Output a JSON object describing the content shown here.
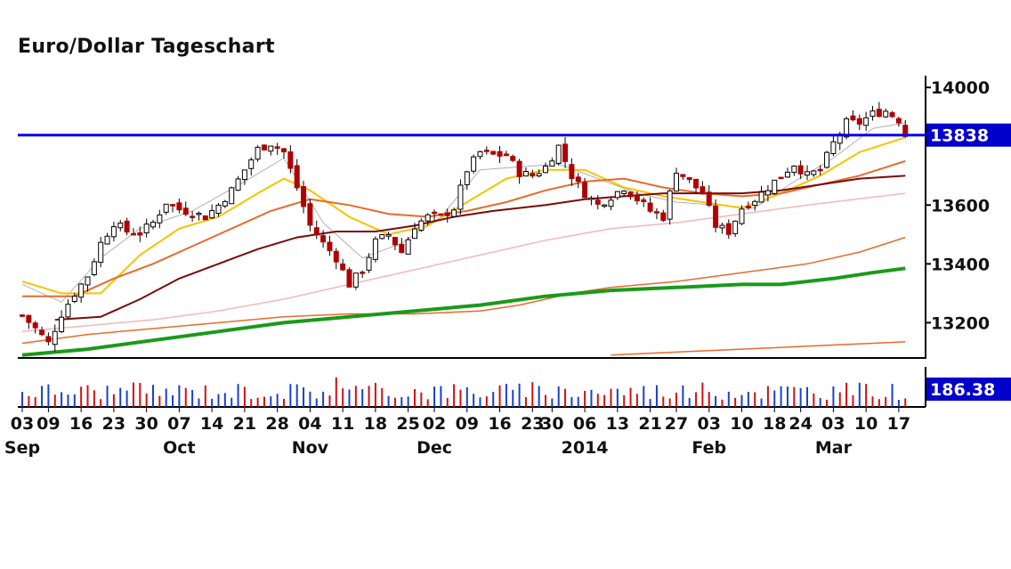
{
  "title": "Euro/Dollar Tageschart",
  "chart_data": {
    "type": "candlestick",
    "title": "Euro/Dollar Tageschart",
    "y_ticks": [
      13200,
      13400,
      13600,
      14000
    ],
    "ylim": [
      13080,
      14040
    ],
    "x_ticks": [
      "03",
      "09",
      "16",
      "23",
      "30",
      "07",
      "14",
      "21",
      "28",
      "04",
      "11",
      "18",
      "25",
      "02",
      "09",
      "16",
      "23",
      "30",
      "06",
      "13",
      "21",
      "27",
      "03",
      "10",
      "18",
      "24",
      "03",
      "10",
      "17"
    ],
    "x_tick_index": [
      0,
      4,
      9,
      14,
      19,
      24,
      29,
      34,
      39,
      44,
      49,
      54,
      59,
      63,
      68,
      73,
      78,
      81,
      86,
      91,
      96,
      100,
      105,
      110,
      115,
      119,
      124,
      129,
      134
    ],
    "months": [
      {
        "label": "Sep",
        "index": 0
      },
      {
        "label": "Oct",
        "index": 24
      },
      {
        "label": "Nov",
        "index": 44
      },
      {
        "label": "Dec",
        "index": 63
      },
      {
        "label": "2014",
        "index": 86
      },
      {
        "label": "Feb",
        "index": 105
      },
      {
        "label": "Mar",
        "index": 124
      }
    ],
    "horizontal_line": {
      "value": 13838,
      "label": "13838",
      "color": "#0000ee"
    },
    "last_volume_label": "186.38",
    "colors": {
      "up": "#000000",
      "down": "#b00000",
      "ma_fast": "#f5c400",
      "ma_thin": "#b0b0b0",
      "ma_orange": "#e86a2a",
      "ma_darkred": "#7a0a0a",
      "ma_pink": "#f2b8b8",
      "ma_green": "#1a9a1a",
      "vol_up": "#1a3fd0",
      "vol_down": "#d01010",
      "label_box": "#0000cc"
    },
    "ohlc_keypoints": [
      [
        0,
        13225
      ],
      [
        2,
        13180
      ],
      [
        4,
        13130
      ],
      [
        6,
        13230
      ],
      [
        8,
        13300
      ],
      [
        10,
        13360
      ],
      [
        12,
        13470
      ],
      [
        14,
        13540
      ],
      [
        16,
        13510
      ],
      [
        18,
        13505
      ],
      [
        20,
        13540
      ],
      [
        22,
        13610
      ],
      [
        24,
        13585
      ],
      [
        26,
        13575
      ],
      [
        28,
        13560
      ],
      [
        30,
        13600
      ],
      [
        32,
        13650
      ],
      [
        34,
        13720
      ],
      [
        36,
        13790
      ],
      [
        38,
        13810
      ],
      [
        40,
        13780
      ],
      [
        42,
        13660
      ],
      [
        44,
        13530
      ],
      [
        46,
        13470
      ],
      [
        48,
        13420
      ],
      [
        50,
        13330
      ],
      [
        52,
        13380
      ],
      [
        54,
        13475
      ],
      [
        56,
        13500
      ],
      [
        58,
        13440
      ],
      [
        60,
        13530
      ],
      [
        62,
        13560
      ],
      [
        64,
        13560
      ],
      [
        66,
        13590
      ],
      [
        68,
        13720
      ],
      [
        70,
        13780
      ],
      [
        72,
        13770
      ],
      [
        74,
        13770
      ],
      [
        76,
        13710
      ],
      [
        78,
        13700
      ],
      [
        80,
        13730
      ],
      [
        82,
        13800
      ],
      [
        84,
        13700
      ],
      [
        86,
        13640
      ],
      [
        88,
        13600
      ],
      [
        90,
        13630
      ],
      [
        92,
        13660
      ],
      [
        94,
        13620
      ],
      [
        96,
        13580
      ],
      [
        98,
        13560
      ],
      [
        100,
        13720
      ],
      [
        102,
        13680
      ],
      [
        104,
        13640
      ],
      [
        106,
        13530
      ],
      [
        108,
        13510
      ],
      [
        110,
        13590
      ],
      [
        112,
        13620
      ],
      [
        114,
        13660
      ],
      [
        116,
        13700
      ],
      [
        118,
        13740
      ],
      [
        120,
        13700
      ],
      [
        122,
        13720
      ],
      [
        124,
        13810
      ],
      [
        126,
        13880
      ],
      [
        128,
        13880
      ],
      [
        130,
        13910
      ],
      [
        132,
        13920
      ],
      [
        134,
        13890
      ],
      [
        135,
        13838
      ]
    ],
    "moving_averages": [
      {
        "key": "ma_thin",
        "width": 1,
        "points": [
          [
            0,
            13330
          ],
          [
            6,
            13270
          ],
          [
            12,
            13420
          ],
          [
            18,
            13520
          ],
          [
            26,
            13580
          ],
          [
            34,
            13680
          ],
          [
            40,
            13760
          ],
          [
            46,
            13540
          ],
          [
            52,
            13420
          ],
          [
            58,
            13470
          ],
          [
            64,
            13560
          ],
          [
            70,
            13720
          ],
          [
            76,
            13730
          ],
          [
            82,
            13740
          ],
          [
            88,
            13690
          ],
          [
            94,
            13640
          ],
          [
            100,
            13610
          ],
          [
            106,
            13600
          ],
          [
            112,
            13590
          ],
          [
            118,
            13680
          ],
          [
            124,
            13760
          ],
          [
            130,
            13860
          ],
          [
            135,
            13880
          ]
        ]
      },
      {
        "key": "ma_fast",
        "width": 2,
        "points": [
          [
            0,
            13340
          ],
          [
            6,
            13300
          ],
          [
            12,
            13300
          ],
          [
            18,
            13430
          ],
          [
            24,
            13520
          ],
          [
            30,
            13560
          ],
          [
            36,
            13640
          ],
          [
            40,
            13690
          ],
          [
            44,
            13650
          ],
          [
            50,
            13560
          ],
          [
            56,
            13500
          ],
          [
            62,
            13530
          ],
          [
            68,
            13610
          ],
          [
            74,
            13690
          ],
          [
            80,
            13720
          ],
          [
            86,
            13720
          ],
          [
            92,
            13660
          ],
          [
            98,
            13630
          ],
          [
            104,
            13610
          ],
          [
            110,
            13590
          ],
          [
            116,
            13640
          ],
          [
            122,
            13700
          ],
          [
            128,
            13780
          ],
          [
            135,
            13830
          ]
        ]
      },
      {
        "key": "ma_orange",
        "width": 2,
        "points": [
          [
            0,
            13290
          ],
          [
            8,
            13290
          ],
          [
            14,
            13350
          ],
          [
            20,
            13400
          ],
          [
            26,
            13460
          ],
          [
            32,
            13520
          ],
          [
            38,
            13580
          ],
          [
            44,
            13620
          ],
          [
            50,
            13600
          ],
          [
            56,
            13570
          ],
          [
            62,
            13560
          ],
          [
            68,
            13580
          ],
          [
            74,
            13610
          ],
          [
            80,
            13650
          ],
          [
            86,
            13680
          ],
          [
            92,
            13690
          ],
          [
            98,
            13660
          ],
          [
            104,
            13640
          ],
          [
            110,
            13630
          ],
          [
            116,
            13640
          ],
          [
            122,
            13670
          ],
          [
            128,
            13700
          ],
          [
            135,
            13750
          ]
        ]
      },
      {
        "key": "ma_darkred",
        "width": 2,
        "points": [
          [
            5,
            13210
          ],
          [
            12,
            13220
          ],
          [
            18,
            13280
          ],
          [
            24,
            13350
          ],
          [
            30,
            13400
          ],
          [
            36,
            13450
          ],
          [
            42,
            13490
          ],
          [
            48,
            13510
          ],
          [
            54,
            13510
          ],
          [
            60,
            13530
          ],
          [
            66,
            13560
          ],
          [
            72,
            13580
          ],
          [
            80,
            13600
          ],
          [
            86,
            13620
          ],
          [
            92,
            13630
          ],
          [
            98,
            13640
          ],
          [
            104,
            13640
          ],
          [
            110,
            13640
          ],
          [
            116,
            13650
          ],
          [
            122,
            13670
          ],
          [
            128,
            13690
          ],
          [
            135,
            13700
          ]
        ]
      },
      {
        "key": "ma_pink",
        "width": 1.5,
        "points": [
          [
            0,
            13170
          ],
          [
            10,
            13190
          ],
          [
            20,
            13210
          ],
          [
            30,
            13240
          ],
          [
            40,
            13280
          ],
          [
            50,
            13330
          ],
          [
            60,
            13380
          ],
          [
            70,
            13430
          ],
          [
            80,
            13480
          ],
          [
            90,
            13520
          ],
          [
            100,
            13540
          ],
          [
            110,
            13570
          ],
          [
            120,
            13600
          ],
          [
            135,
            13640
          ]
        ]
      },
      {
        "key": "ma_orange",
        "width": 1.5,
        "points": [
          [
            0,
            13130
          ],
          [
            10,
            13160
          ],
          [
            20,
            13180
          ],
          [
            30,
            13200
          ],
          [
            40,
            13220
          ],
          [
            50,
            13230
          ],
          [
            60,
            13230
          ],
          [
            70,
            13240
          ],
          [
            76,
            13260
          ],
          [
            84,
            13300
          ],
          [
            90,
            13320
          ],
          [
            100,
            13340
          ],
          [
            110,
            13370
          ],
          [
            120,
            13400
          ],
          [
            128,
            13440
          ],
          [
            135,
            13490
          ]
        ]
      },
      {
        "key": "ma_green",
        "width": 4,
        "points": [
          [
            0,
            13090
          ],
          [
            10,
            13110
          ],
          [
            20,
            13140
          ],
          [
            30,
            13170
          ],
          [
            40,
            13200
          ],
          [
            50,
            13220
          ],
          [
            60,
            13240
          ],
          [
            70,
            13260
          ],
          [
            80,
            13290
          ],
          [
            90,
            13310
          ],
          [
            100,
            13320
          ],
          [
            110,
            13330
          ],
          [
            116,
            13330
          ],
          [
            124,
            13350
          ],
          [
            130,
            13370
          ],
          [
            135,
            13385
          ]
        ]
      },
      {
        "key": "ma_orange",
        "width": 1.5,
        "points": [
          [
            90,
            13090
          ],
          [
            100,
            13100
          ],
          [
            110,
            13110
          ],
          [
            120,
            13120
          ],
          [
            130,
            13130
          ],
          [
            135,
            13135
          ]
        ]
      }
    ]
  }
}
